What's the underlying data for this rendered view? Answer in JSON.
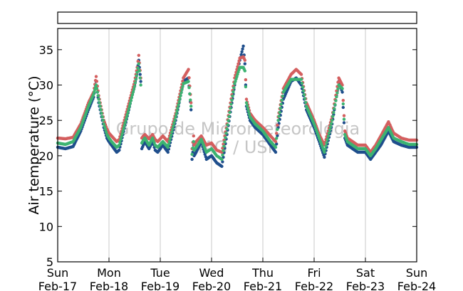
{
  "chart_data": {
    "type": "scatter",
    "ylabel": "Air temperature (°C)",
    "ylim": [
      5,
      38
    ],
    "yticks": [
      5,
      10,
      15,
      20,
      25,
      30,
      35
    ],
    "xlim": [
      "2013-02-17 00:00",
      "2013-02-24 00:00"
    ],
    "xticks": [
      {
        "day": "Sun",
        "date": "Feb-17"
      },
      {
        "day": "Mon",
        "date": "Feb-18"
      },
      {
        "day": "Tue",
        "date": "Feb-19"
      },
      {
        "day": "Wed",
        "date": "Feb-20"
      },
      {
        "day": "Thu",
        "date": "Feb-21"
      },
      {
        "day": "Fri",
        "date": "Feb-22"
      },
      {
        "day": "Sat",
        "date": "Feb-23"
      },
      {
        "day": "Sun",
        "date": "Feb-24"
      }
    ],
    "grid": "vertical",
    "legend": "top (empty box)",
    "watermark": [
      "Grupo de Micrometeorologia",
      "IAG / USP"
    ],
    "series_colors": [
      "#1f4e8c",
      "#d45f5f",
      "#3cb371"
    ],
    "series": [
      {
        "color": "#1f4e8c",
        "x": [
          0,
          0.15,
          0.3,
          0.45,
          0.6,
          0.7,
          0.75,
          0.8,
          0.9,
          0.96,
          1.0,
          1.05,
          1.15,
          1.2,
          1.5,
          1.55,
          1.58,
          1.62,
          1.64,
          1.67,
          1.7,
          1.78,
          1.85,
          1.9,
          1.95,
          2.05,
          2.15,
          2.3,
          2.45,
          2.55,
          2.6,
          2.62,
          2.65,
          2.66,
          2.7,
          2.8,
          2.9,
          3.0,
          3.1,
          3.2,
          3.3,
          3.45,
          3.55,
          3.62,
          3.65,
          3.68,
          3.75,
          3.85,
          4.0,
          4.15,
          4.25,
          4.3,
          4.4,
          4.55,
          4.65,
          4.75,
          4.85,
          5.0,
          5.1,
          5.2,
          5.35,
          5.48,
          5.55,
          5.6,
          5.65,
          5.75,
          5.85,
          6.0,
          6.1,
          6.2,
          6.3,
          6.45,
          6.55,
          6.7,
          6.85,
          7.0
        ],
        "y": [
          21.2,
          21.0,
          21.3,
          23.5,
          26.5,
          28.3,
          30.5,
          27.5,
          24.0,
          22.5,
          22.0,
          21.5,
          20.5,
          20.8,
          30.0,
          32.0,
          33.5,
          30.5,
          21.0,
          21.5,
          22.0,
          21.0,
          22.0,
          20.8,
          20.5,
          21.5,
          20.5,
          25.0,
          30.5,
          31.0,
          26.5,
          19.5,
          21.5,
          20.0,
          20.5,
          22.0,
          19.5,
          20.0,
          19.0,
          18.5,
          23.0,
          30.0,
          33.5,
          35.5,
          33.0,
          27.0,
          25.0,
          24.0,
          23.0,
          21.5,
          20.5,
          24.0,
          28.0,
          30.5,
          31.0,
          30.0,
          26.5,
          24.0,
          22.0,
          19.8,
          24.5,
          30.5,
          29.0,
          22.5,
          21.5,
          21.0,
          20.5,
          20.5,
          19.5,
          20.5,
          21.5,
          23.5,
          22.0,
          21.5,
          21.2,
          21.2
        ]
      },
      {
        "color": "#d45f5f",
        "x": [
          0,
          0.15,
          0.3,
          0.45,
          0.6,
          0.7,
          0.75,
          0.8,
          0.9,
          0.96,
          1.0,
          1.05,
          1.15,
          1.2,
          1.5,
          1.55,
          1.58,
          1.62,
          1.64,
          1.67,
          1.7,
          1.78,
          1.85,
          1.9,
          1.95,
          2.05,
          2.15,
          2.3,
          2.45,
          2.55,
          2.6,
          2.62,
          2.65,
          2.66,
          2.7,
          2.8,
          2.9,
          3.0,
          3.1,
          3.2,
          3.3,
          3.45,
          3.55,
          3.62,
          3.65,
          3.68,
          3.75,
          3.85,
          4.0,
          4.15,
          4.25,
          4.3,
          4.4,
          4.55,
          4.65,
          4.75,
          4.85,
          5.0,
          5.1,
          5.2,
          5.35,
          5.48,
          5.55,
          5.6,
          5.65,
          5.75,
          5.85,
          6.0,
          6.1,
          6.2,
          6.3,
          6.45,
          6.55,
          6.7,
          6.85,
          7.0
        ],
        "y": [
          22.5,
          22.4,
          22.6,
          24.5,
          27.5,
          29.0,
          31.2,
          28.5,
          25.0,
          23.8,
          23.2,
          22.8,
          22.0,
          22.3,
          30.5,
          32.5,
          34.2,
          31.0,
          22.5,
          22.8,
          23.0,
          22.4,
          23.0,
          22.3,
          22.0,
          22.8,
          22.0,
          26.0,
          31.0,
          32.2,
          27.5,
          21.0,
          22.8,
          21.5,
          22.0,
          22.8,
          21.5,
          21.8,
          20.8,
          20.5,
          24.5,
          31.0,
          33.8,
          34.0,
          33.5,
          28.0,
          26.0,
          25.0,
          24.0,
          22.8,
          22.0,
          25.5,
          29.5,
          31.5,
          32.2,
          31.5,
          27.5,
          25.0,
          23.0,
          21.5,
          25.5,
          31.0,
          30.0,
          23.5,
          22.5,
          22.0,
          21.5,
          21.5,
          20.5,
          21.5,
          22.8,
          24.8,
          23.2,
          22.5,
          22.2,
          22.2
        ]
      },
      {
        "color": "#3cb371",
        "x": [
          0,
          0.15,
          0.3,
          0.45,
          0.6,
          0.7,
          0.75,
          0.8,
          0.9,
          0.96,
          1.0,
          1.05,
          1.15,
          1.2,
          1.5,
          1.55,
          1.58,
          1.62,
          1.64,
          1.67,
          1.7,
          1.78,
          1.85,
          1.9,
          1.95,
          2.05,
          2.15,
          2.3,
          2.45,
          2.55,
          2.6,
          2.62,
          2.65,
          2.66,
          2.7,
          2.8,
          2.9,
          3.0,
          3.1,
          3.2,
          3.3,
          3.45,
          3.55,
          3.62,
          3.65,
          3.68,
          3.75,
          3.85,
          4.0,
          4.15,
          4.25,
          4.3,
          4.4,
          4.55,
          4.65,
          4.75,
          4.85,
          5.0,
          5.1,
          5.2,
          5.35,
          5.48,
          5.55,
          5.6,
          5.65,
          5.75,
          5.85,
          6.0,
          6.1,
          6.2,
          6.3,
          6.45,
          6.55,
          6.7,
          6.85,
          7.0
        ],
        "y": [
          21.8,
          21.6,
          22.0,
          24.0,
          27.0,
          28.7,
          30.0,
          28.0,
          24.5,
          23.0,
          22.5,
          22.0,
          21.2,
          21.5,
          29.8,
          31.8,
          33.0,
          30.0,
          21.8,
          22.2,
          22.5,
          21.5,
          22.5,
          21.5,
          21.2,
          22.0,
          21.2,
          25.5,
          30.2,
          30.5,
          27.0,
          20.2,
          22.0,
          20.8,
          21.2,
          22.3,
          20.5,
          21.0,
          20.0,
          19.5,
          23.8,
          30.2,
          32.5,
          32.5,
          32.0,
          27.5,
          25.5,
          24.5,
          23.5,
          22.0,
          21.2,
          25.0,
          29.0,
          30.8,
          30.8,
          30.8,
          27.0,
          24.5,
          22.5,
          20.5,
          25.0,
          30.0,
          29.5,
          23.0,
          22.0,
          21.5,
          21.0,
          21.0,
          20.0,
          21.0,
          22.2,
          24.0,
          22.5,
          22.0,
          21.6,
          21.6
        ]
      }
    ]
  }
}
